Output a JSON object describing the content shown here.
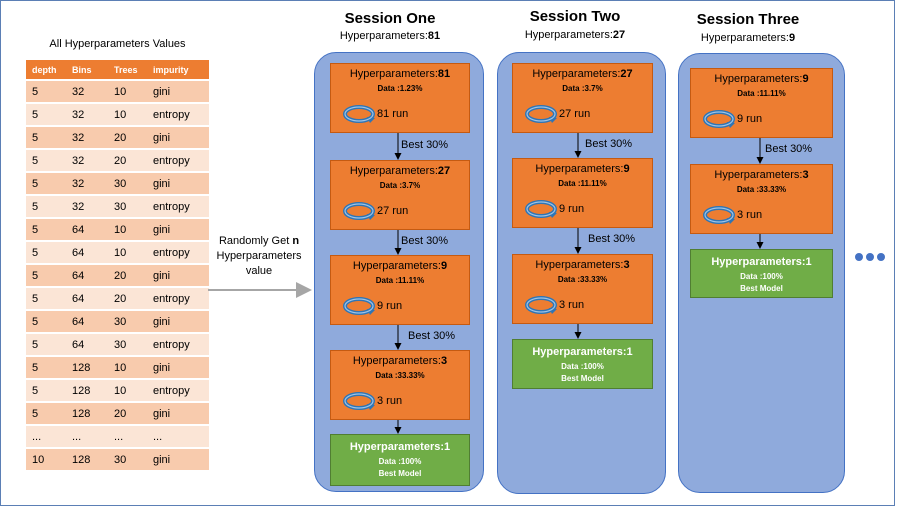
{
  "table": {
    "title": "All Hyperparameters Values",
    "headers": [
      "depth",
      "Bins",
      "Trees",
      "impurity"
    ],
    "rows": [
      [
        "5",
        "32",
        "10",
        "gini"
      ],
      [
        "5",
        "32",
        "10",
        "entropy"
      ],
      [
        "5",
        "32",
        "20",
        "gini"
      ],
      [
        "5",
        "32",
        "20",
        "entropy"
      ],
      [
        "5",
        "32",
        "30",
        "gini"
      ],
      [
        "5",
        "32",
        "30",
        "entropy"
      ],
      [
        "5",
        "64",
        "10",
        "gini"
      ],
      [
        "5",
        "64",
        "10",
        "entropy"
      ],
      [
        "5",
        "64",
        "20",
        "gini"
      ],
      [
        "5",
        "64",
        "20",
        "entropy"
      ],
      [
        "5",
        "64",
        "30",
        "gini"
      ],
      [
        "5",
        "64",
        "30",
        "entropy"
      ],
      [
        "5",
        "128",
        "10",
        "gini"
      ],
      [
        "5",
        "128",
        "10",
        "entropy"
      ],
      [
        "5",
        "128",
        "20",
        "gini"
      ],
      [
        "...",
        "...",
        "...",
        "..."
      ],
      [
        "10",
        "128",
        "30",
        "gini"
      ]
    ]
  },
  "random_label": {
    "prefix": "Randomly Get ",
    "n": "n",
    "line2": "Hyperparameters",
    "line3": "value"
  },
  "sessions": [
    {
      "title": "Session One",
      "sub_label": "Hyperparameters:",
      "sub_value": "81",
      "stages": [
        {
          "hp": "Hyperparameters:",
          "hp_val": "81",
          "data": "Data :1.23%",
          "run": "81 run"
        },
        {
          "hp": "Hyperparameters:",
          "hp_val": "27",
          "data": "Data :3.7%",
          "run": "27 run"
        },
        {
          "hp": "Hyperparameters:",
          "hp_val": "9",
          "data": "Data :11.11%",
          "run": "9 run"
        },
        {
          "hp": "Hyperparameters:",
          "hp_val": "3",
          "data": "Data :33.33%",
          "run": "3 run"
        }
      ],
      "best_labels": [
        "Best 30%",
        "Best 30%",
        "Best 30%"
      ],
      "final": {
        "hp": "Hyperparameters:1",
        "data": "Data :100%",
        "best": "Best Model"
      }
    },
    {
      "title": "Session Two",
      "sub_label": "Hyperparameters:",
      "sub_value": "27",
      "stages": [
        {
          "hp": "Hyperparameters:",
          "hp_val": "27",
          "data": "Data :3.7%",
          "run": "27 run"
        },
        {
          "hp": "Hyperparameters:",
          "hp_val": "9",
          "data": "Data :11.11%",
          "run": "9 run"
        },
        {
          "hp": "Hyperparameters:",
          "hp_val": "3",
          "data": "Data :33.33%",
          "run": "3 run"
        }
      ],
      "best_labels": [
        "Best 30%",
        "Best 30%"
      ],
      "final": {
        "hp": "Hyperparameters:1",
        "data": "Data :100%",
        "best": "Best Model"
      }
    },
    {
      "title": "Session Three",
      "sub_label": "Hyperparameters:",
      "sub_value": "9",
      "stages": [
        {
          "hp": "Hyperparameters:",
          "hp_val": "9",
          "data": "Data :11.11%",
          "run": "9 run"
        },
        {
          "hp": "Hyperparameters:",
          "hp_val": "3",
          "data": "Data :33.33%",
          "run": "3 run"
        }
      ],
      "best_labels": [
        "Best 30%"
      ],
      "final": {
        "hp": "Hyperparameters:1",
        "data": "Data :100%",
        "best": "Best Model"
      }
    }
  ],
  "colors": {
    "table_header": "#ed7d31",
    "row_dark": "#f8cbad",
    "row_light": "#fbe5d6",
    "column_bg": "#8faadc",
    "stage_box": "#ed7d31",
    "final_box": "#70ad47",
    "loop_arrow": "#2e75b6"
  }
}
